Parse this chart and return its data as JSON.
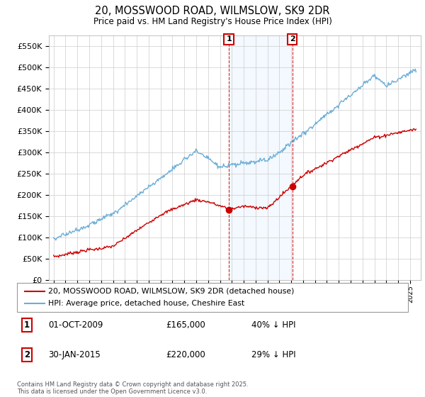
{
  "title": "20, MOSSWOOD ROAD, WILMSLOW, SK9 2DR",
  "subtitle": "Price paid vs. HM Land Registry's House Price Index (HPI)",
  "hpi_color": "#6baed6",
  "price_color": "#cc0000",
  "marker_color": "#cc0000",
  "shaded_color": "#ddeeff",
  "vline_color": "#cc0000",
  "ylim": [
    0,
    575000
  ],
  "yticks": [
    0,
    50000,
    100000,
    150000,
    200000,
    250000,
    300000,
    350000,
    400000,
    450000,
    500000,
    550000
  ],
  "legend_label_price": "20, MOSSWOOD ROAD, WILMSLOW, SK9 2DR (detached house)",
  "legend_label_hpi": "HPI: Average price, detached house, Cheshire East",
  "transaction1_label": "1",
  "transaction1_date": "01-OCT-2009",
  "transaction1_price": "£165,000",
  "transaction1_info": "40% ↓ HPI",
  "transaction1_x": 2009.75,
  "transaction1_y": 165000,
  "transaction2_label": "2",
  "transaction2_date": "30-JAN-2015",
  "transaction2_price": "£220,000",
  "transaction2_info": "29% ↓ HPI",
  "transaction2_x": 2015.08,
  "transaction2_y": 220000,
  "footer": "Contains HM Land Registry data © Crown copyright and database right 2025.\nThis data is licensed under the Open Government Licence v3.0.",
  "xmin": 1995,
  "xmax": 2025,
  "noise_seed_hpi": 42,
  "noise_seed_price": 7
}
